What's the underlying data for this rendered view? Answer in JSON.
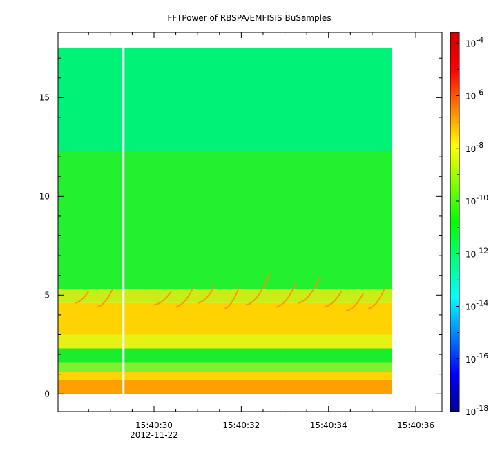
{
  "chart_data": {
    "type": "heatmap",
    "title": "FFTPower of RBSPA/EMFISIS  BuSamples",
    "xlabel": "",
    "ylabel": "",
    "x_ticks": [
      {
        "label": "15:40:30",
        "sub": "2012-11-22",
        "t": 30
      },
      {
        "label": "15:40:32",
        "sub": "",
        "t": 32
      },
      {
        "label": "15:40:34",
        "sub": "",
        "t": 34
      },
      {
        "label": "15:40:36",
        "sub": "",
        "t": 36
      }
    ],
    "x_minor_ticks": [
      28.5,
      29.0,
      29.5,
      30.5,
      31.0,
      31.5,
      32.5,
      33.0,
      33.5,
      34.5,
      35.0,
      35.5
    ],
    "xlim_seconds": [
      27.8,
      36.6
    ],
    "data_time_range_seconds": [
      27.8,
      35.45
    ],
    "gap_time_seconds": 29.3,
    "y_ticks": [
      0,
      5,
      10,
      15
    ],
    "ylim": [
      -0.9,
      18.3
    ],
    "data_y_range": [
      0,
      17.5
    ],
    "colorbar": {
      "scale": "log",
      "range": [
        -18,
        -3.6
      ],
      "tick_labels": [
        {
          "base": "10",
          "exp": "-4",
          "logv": -4
        },
        {
          "base": "10",
          "exp": "-6",
          "logv": -6
        },
        {
          "base": "10",
          "exp": "-8",
          "logv": -8
        },
        {
          "base": "10",
          "exp": "-10",
          "logv": -10
        },
        {
          "base": "10",
          "exp": "-12",
          "logv": -12
        },
        {
          "base": "10",
          "exp": "-14",
          "logv": -14
        },
        {
          "base": "10",
          "exp": "-16",
          "logv": -16
        },
        {
          "base": "10",
          "exp": "-18",
          "logv": -18
        }
      ],
      "colors": [
        "#00008f",
        "#0000ff",
        "#0080ff",
        "#00ffff",
        "#00ff80",
        "#00ff00",
        "#80ff00",
        "#ffff00",
        "#ff8000",
        "#ff0000",
        "#cc0000"
      ]
    },
    "bands": [
      {
        "y": [
          0.0,
          0.7
        ],
        "color": "#ff9f00"
      },
      {
        "y": [
          0.7,
          1.1
        ],
        "color": "#ffd400"
      },
      {
        "y": [
          1.1,
          1.6
        ],
        "color": "#7ff02c"
      },
      {
        "y": [
          1.6,
          2.3
        ],
        "color": "#19ed2c"
      },
      {
        "y": [
          2.3,
          3.0
        ],
        "color": "#e6f214"
      },
      {
        "y": [
          3.0,
          4.6
        ],
        "color": "#ffd300"
      },
      {
        "y": [
          4.6,
          5.3
        ],
        "color": "#c8ee18"
      },
      {
        "y": [
          5.3,
          12.3
        ],
        "color": "#23f02e"
      },
      {
        "y": [
          12.3,
          17.5
        ],
        "color": "#00f277"
      }
    ],
    "chorus_elements": [
      {
        "t": 28.2,
        "f0": 4.6,
        "f1": 5.2,
        "dt": 0.3
      },
      {
        "t": 28.7,
        "f0": 4.4,
        "f1": 5.3,
        "dt": 0.35
      },
      {
        "t": 30.0,
        "f0": 4.5,
        "f1": 5.2,
        "dt": 0.4
      },
      {
        "t": 30.5,
        "f0": 4.4,
        "f1": 5.4,
        "dt": 0.4
      },
      {
        "t": 31.0,
        "f0": 4.6,
        "f1": 5.5,
        "dt": 0.4
      },
      {
        "t": 31.6,
        "f0": 4.3,
        "f1": 5.4,
        "dt": 0.35
      },
      {
        "t": 32.1,
        "f0": 4.5,
        "f1": 6.1,
        "dt": 0.55
      },
      {
        "t": 32.8,
        "f0": 4.4,
        "f1": 5.6,
        "dt": 0.45
      },
      {
        "t": 33.3,
        "f0": 4.6,
        "f1": 5.9,
        "dt": 0.5
      },
      {
        "t": 33.9,
        "f0": 4.4,
        "f1": 5.2,
        "dt": 0.4
      },
      {
        "t": 34.4,
        "f0": 4.2,
        "f1": 5.1,
        "dt": 0.4
      },
      {
        "t": 34.9,
        "f0": 4.3,
        "f1": 5.4,
        "dt": 0.4
      }
    ]
  }
}
